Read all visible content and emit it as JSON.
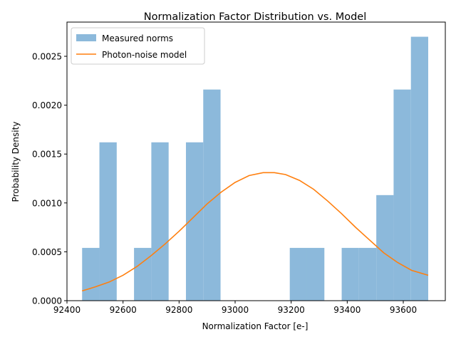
{
  "chart_data": {
    "type": "bar",
    "title": "Normalization Factor Distribution vs. Model",
    "xlabel": "Normalization Factor [e-]",
    "ylabel": "Probability Density",
    "xlim": [
      92400,
      93750
    ],
    "ylim": [
      0,
      0.00285
    ],
    "xticks": [
      92400,
      92600,
      92800,
      93000,
      93200,
      93400,
      93600
    ],
    "yticks": [
      0.0,
      0.0005,
      0.001,
      0.0015,
      0.002,
      0.0025
    ],
    "ytick_labels": [
      "0.0000",
      "0.0005",
      "0.0010",
      "0.0015",
      "0.0020",
      "0.0025"
    ],
    "grid": false,
    "legend_position": "top-left",
    "series": [
      {
        "name": "Measured norms",
        "kind": "histogram",
        "color": "#8cb9db",
        "bin_edges": [
          92454,
          92515.75,
          92577.5,
          92639.25,
          92701,
          92762.75,
          92824.5,
          92886.25,
          92948,
          93009.75,
          93071.5,
          93133.25,
          93195,
          93256.75,
          93318.5,
          93380.25,
          93442,
          93503.75,
          93565.5,
          93627.25,
          93689
        ],
        "values": [
          0.00054,
          0.00162,
          0,
          0.00054,
          0.00162,
          0,
          0.00162,
          0.00216,
          0,
          0,
          0,
          0,
          0.00054,
          0.00054,
          0,
          0.00054,
          0.00054,
          0.00108,
          0.00216,
          0.0027
        ]
      },
      {
        "name": "Photon-noise model",
        "kind": "line",
        "color": "#ff7f0e",
        "x": [
          92454,
          92500,
          92550,
          92600,
          92650,
          92700,
          92750,
          92800,
          92850,
          92900,
          92950,
          93000,
          93050,
          93100,
          93140,
          93180,
          93230,
          93280,
          93330,
          93380,
          93430,
          93480,
          93530,
          93580,
          93630,
          93689
        ],
        "y": [
          0.0001,
          0.00014,
          0.00019,
          0.00026,
          0.00035,
          0.00046,
          0.00058,
          0.00071,
          0.00085,
          0.00099,
          0.00111,
          0.00121,
          0.00128,
          0.00131,
          0.00131,
          0.00129,
          0.00123,
          0.00114,
          0.00102,
          0.00089,
          0.00075,
          0.00062,
          0.00049,
          0.00039,
          0.00031,
          0.00026
        ]
      }
    ]
  }
}
